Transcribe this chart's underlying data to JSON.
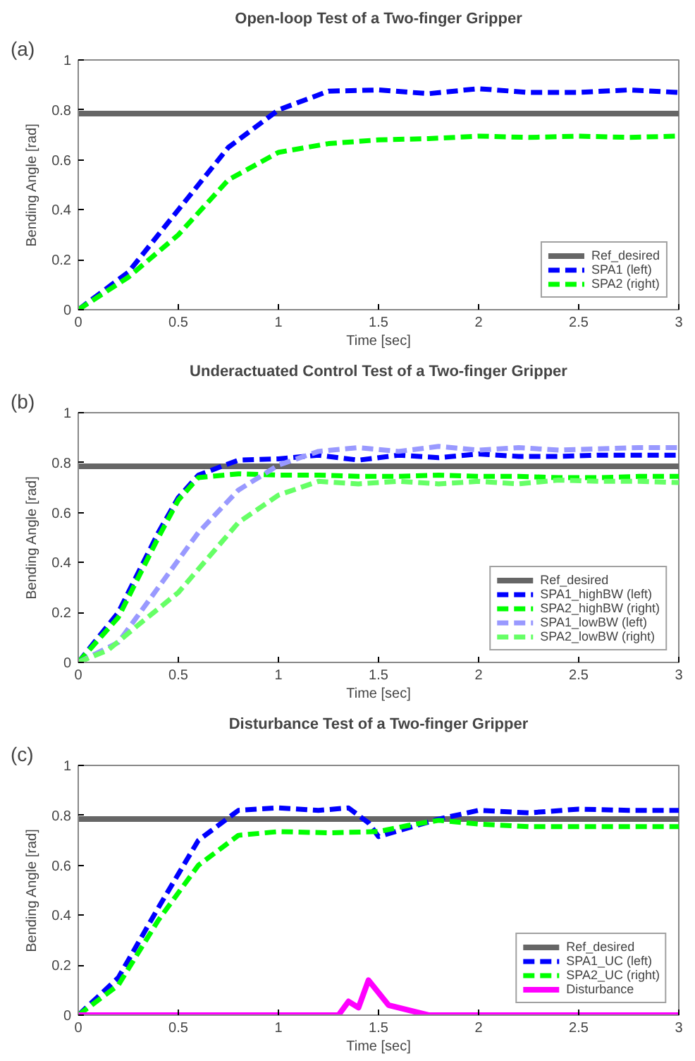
{
  "chart_data": [
    {
      "type": "line",
      "title": "Open-loop Test of a Two-finger Gripper",
      "xlabel": "Time [sec]",
      "ylabel": "Bending Angle [rad]",
      "annotations": [
        "(a)"
      ],
      "xlim": [
        0,
        3
      ],
      "ylim": [
        0,
        1
      ],
      "xticks": [
        0,
        0.5,
        1,
        1.5,
        2,
        2.5,
        3
      ],
      "yticks": [
        0,
        0.2,
        0.4,
        0.6,
        0.8,
        1
      ],
      "grid": false,
      "legend": "bottom right",
      "series": [
        {
          "name": "Ref_desired",
          "color": "#666666",
          "line_style": "solid",
          "x": [
            0,
            3
          ],
          "values": [
            0.785,
            0.785
          ]
        },
        {
          "name": "SPA1 (left)",
          "color": "#0000ff",
          "line_style": "dashed",
          "x": [
            0,
            0.25,
            0.5,
            0.75,
            1,
            1.25,
            1.5,
            1.75,
            2,
            2.25,
            2.5,
            2.75,
            3
          ],
          "values": [
            0,
            0.15,
            0.4,
            0.65,
            0.8,
            0.875,
            0.88,
            0.865,
            0.885,
            0.87,
            0.87,
            0.88,
            0.87
          ]
        },
        {
          "name": "SPA2 (right)",
          "color": "#00ff00",
          "line_style": "dashed",
          "x": [
            0,
            0.25,
            0.5,
            0.75,
            1,
            1.25,
            1.5,
            1.75,
            2,
            2.25,
            2.5,
            2.75,
            3
          ],
          "values": [
            0,
            0.13,
            0.3,
            0.52,
            0.63,
            0.665,
            0.68,
            0.685,
            0.695,
            0.69,
            0.695,
            0.69,
            0.695
          ]
        }
      ]
    },
    {
      "type": "line",
      "title": "Underactuated Control Test of a Two-finger Gripper",
      "xlabel": "Time [sec]",
      "ylabel": "Bending Angle [rad]",
      "annotations": [
        "(b)"
      ],
      "xlim": [
        0,
        3
      ],
      "ylim": [
        0,
        1
      ],
      "xticks": [
        0,
        0.5,
        1,
        1.5,
        2,
        2.5,
        3
      ],
      "yticks": [
        0,
        0.2,
        0.4,
        0.6,
        0.8,
        1
      ],
      "grid": false,
      "legend": "bottom right",
      "series": [
        {
          "name": "Ref_desired",
          "color": "#666666",
          "line_style": "solid",
          "x": [
            0,
            3
          ],
          "values": [
            0.785,
            0.785
          ]
        },
        {
          "name": "SPA1_highBW (left)",
          "color": "#0000ff",
          "line_style": "dashed",
          "x": [
            0,
            0.2,
            0.4,
            0.5,
            0.6,
            0.8,
            1.0,
            1.2,
            1.4,
            1.6,
            1.8,
            2.0,
            2.2,
            2.4,
            2.6,
            2.8,
            3.0
          ],
          "values": [
            0,
            0.2,
            0.52,
            0.66,
            0.75,
            0.81,
            0.815,
            0.83,
            0.81,
            0.83,
            0.82,
            0.835,
            0.825,
            0.825,
            0.83,
            0.83,
            0.83
          ]
        },
        {
          "name": "SPA2_highBW (right)",
          "color": "#00ff00",
          "line_style": "dashed",
          "x": [
            0,
            0.2,
            0.4,
            0.5,
            0.6,
            0.8,
            1.0,
            1.2,
            1.4,
            1.6,
            1.8,
            2.0,
            2.2,
            2.4,
            2.6,
            2.8,
            3.0
          ],
          "values": [
            0,
            0.18,
            0.5,
            0.65,
            0.74,
            0.755,
            0.75,
            0.75,
            0.745,
            0.745,
            0.75,
            0.745,
            0.745,
            0.74,
            0.74,
            0.745,
            0.745
          ]
        },
        {
          "name": "SPA1_lowBW (left)",
          "color": "#9999ff",
          "line_style": "dashed",
          "x": [
            0,
            0.2,
            0.4,
            0.6,
            0.8,
            1.0,
            1.2,
            1.4,
            1.6,
            1.8,
            2.0,
            2.2,
            2.4,
            2.6,
            2.8,
            3.0
          ],
          "values": [
            0,
            0.08,
            0.3,
            0.52,
            0.69,
            0.79,
            0.845,
            0.86,
            0.845,
            0.865,
            0.85,
            0.86,
            0.85,
            0.855,
            0.86,
            0.86
          ]
        },
        {
          "name": "SPA2_lowBW (right)",
          "color": "#66ff66",
          "line_style": "dashed",
          "x": [
            0,
            0.15,
            0.3,
            0.5,
            0.8,
            1.0,
            1.2,
            1.4,
            1.6,
            1.8,
            2.0,
            2.2,
            2.4,
            2.6,
            2.8,
            3.0
          ],
          "values": [
            0,
            0.05,
            0.15,
            0.28,
            0.56,
            0.67,
            0.725,
            0.715,
            0.725,
            0.715,
            0.725,
            0.715,
            0.73,
            0.725,
            0.725,
            0.72
          ]
        }
      ]
    },
    {
      "type": "line",
      "title": "Disturbance Test of a Two-finger Gripper",
      "xlabel": "Time [sec]",
      "ylabel": "Bending Angle [rad]",
      "annotations": [
        "(c)"
      ],
      "xlim": [
        0,
        3
      ],
      "ylim": [
        0,
        1
      ],
      "xticks": [
        0,
        0.5,
        1,
        1.5,
        2,
        2.5,
        3
      ],
      "yticks": [
        0,
        0.2,
        0.4,
        0.6,
        0.8,
        1
      ],
      "grid": false,
      "legend": "bottom right",
      "series": [
        {
          "name": "Ref_desired",
          "color": "#666666",
          "line_style": "solid",
          "x": [
            0,
            3
          ],
          "values": [
            0.785,
            0.785
          ]
        },
        {
          "name": "SPA1_UC (left)",
          "color": "#0000ff",
          "line_style": "dashed",
          "x": [
            0,
            0.2,
            0.4,
            0.6,
            0.8,
            1.0,
            1.2,
            1.35,
            1.45,
            1.5,
            1.65,
            1.8,
            2.0,
            2.25,
            2.5,
            2.75,
            3.0
          ],
          "values": [
            0,
            0.15,
            0.43,
            0.7,
            0.82,
            0.83,
            0.82,
            0.83,
            0.77,
            0.715,
            0.75,
            0.785,
            0.82,
            0.81,
            0.825,
            0.82,
            0.82
          ]
        },
        {
          "name": "SPA2_UC (right)",
          "color": "#00ff00",
          "line_style": "dashed",
          "x": [
            0,
            0.2,
            0.4,
            0.6,
            0.8,
            1.0,
            1.25,
            1.5,
            1.65,
            1.8,
            2.0,
            2.25,
            2.5,
            2.75,
            3.0
          ],
          "values": [
            0,
            0.12,
            0.38,
            0.6,
            0.72,
            0.735,
            0.73,
            0.735,
            0.76,
            0.78,
            0.765,
            0.755,
            0.755,
            0.755,
            0.755
          ]
        },
        {
          "name": "Disturbance",
          "color": "#ff00ff",
          "line_style": "solid",
          "x": [
            0,
            1.3,
            1.35,
            1.4,
            1.45,
            1.55,
            1.75,
            3
          ],
          "values": [
            0,
            0,
            0.055,
            0.03,
            0.14,
            0.04,
            0,
            0
          ]
        }
      ]
    }
  ]
}
